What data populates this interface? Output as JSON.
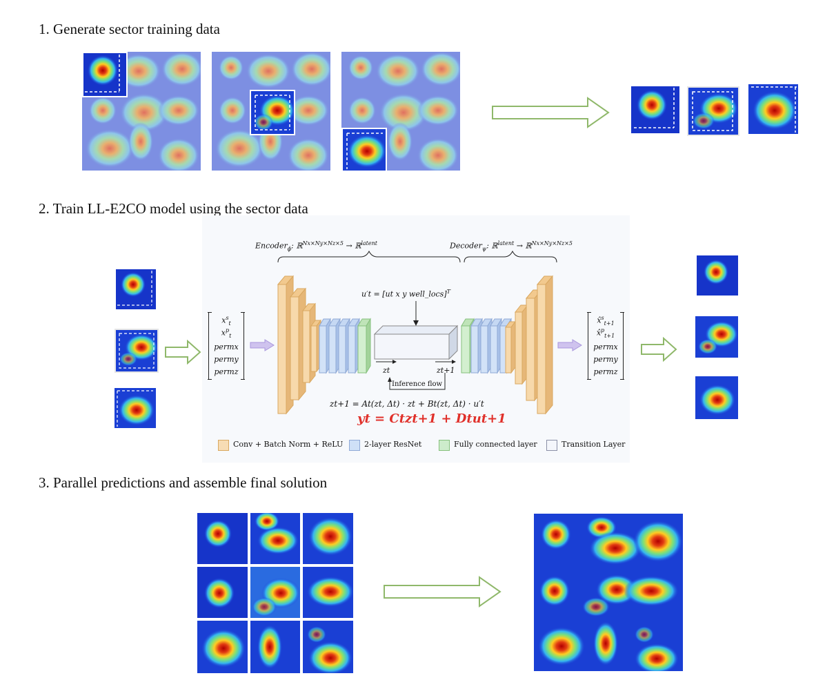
{
  "steps": {
    "step1": "1. Generate sector training data",
    "step2": "2. Train LL-E2CO model using the sector data",
    "step3": "3. Parallel predictions and assemble final solution"
  },
  "diagram": {
    "encoder_label": "Encoder",
    "encoder_sub": "ϕ",
    "encoder_map": ": ℝ",
    "encoder_dims": "Nx×Ny×Nz×5",
    "encoder_arrow": " → ℝ",
    "encoder_latent": "latent",
    "decoder_label": "Decoder",
    "decoder_sub": "ψ",
    "decoder_map": ": ℝ",
    "decoder_latent": "latent",
    "decoder_arrow": " → ℝ",
    "decoder_dims": "Nx×Ny×Nz×5",
    "control_eq": "u′t = [ut  x  y  well_locs]",
    "control_sup": "T",
    "zt": "zt",
    "zt1": "zt+1",
    "inference_flow": "Inference flow",
    "transition_eq": "zt+1 = At(zt, Δt) · zt + Bt(zt, Δt) · u′t",
    "output_eq": "yt = Ctzt+1 + Dtut+1",
    "input_vector": [
      "x",
      "x",
      "permx",
      "permy",
      "permz"
    ],
    "input_vector_sup": [
      "s",
      "p",
      "",
      "",
      ""
    ],
    "input_vector_sub": [
      "t",
      "t",
      "",
      "",
      ""
    ],
    "output_vector": [
      "x̂",
      "x̂",
      "permx",
      "permy",
      "permz"
    ],
    "output_vector_sup": [
      "s",
      "p",
      "",
      "",
      ""
    ],
    "output_vector_sub": [
      "t+1",
      "t+1",
      "",
      "",
      ""
    ]
  },
  "legend": [
    {
      "label": "Conv + Batch Norm + ReLU",
      "color": "#f7dcb4"
    },
    {
      "label": "2-layer ResNet",
      "color": "#cfe0f7"
    },
    {
      "label": "Fully connected layer",
      "color": "#cdeccb"
    },
    {
      "label": "Transition Layer",
      "color": "#f4f6fb"
    }
  ],
  "colors": {
    "arrow_green": "#8fb86a",
    "arrow_purple": "#b7a8e0",
    "output_red": "#e0302a",
    "conv": "#f5cf9a",
    "resnet": "#bcd3f3",
    "fc": "#bfe4b8"
  }
}
